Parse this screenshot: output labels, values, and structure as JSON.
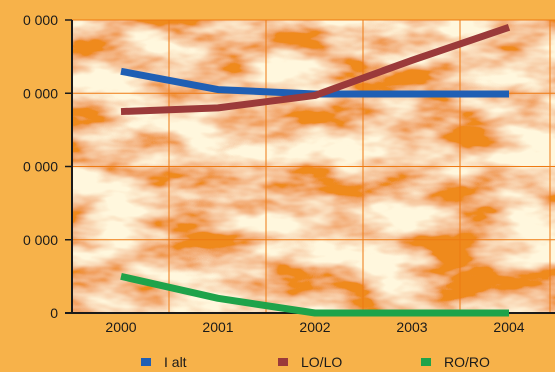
{
  "chart_data": {
    "type": "line",
    "title": "",
    "xlabel": "",
    "ylabel": "",
    "categories": [
      "2000",
      "2001",
      "2002",
      "2003",
      "2004"
    ],
    "y_tick_labels": [
      "0",
      "0 000",
      "0 000",
      "0 000",
      "0 000"
    ],
    "grid": true,
    "legend_position": "bottom",
    "series": [
      {
        "name": "I alt",
        "color": "#1f5fb4",
        "values": [
          3.3,
          3.05,
          2.99,
          2.99,
          2.99
        ]
      },
      {
        "name": "LO/LO",
        "color": "#9b3a3a",
        "values": [
          2.75,
          2.8,
          2.97,
          3.45,
          3.9
        ]
      },
      {
        "name": "RO/RO",
        "color": "#1fa34a",
        "values": [
          0.5,
          0.2,
          0.0,
          0.0,
          0.0
        ]
      }
    ],
    "ylim": [
      0,
      4
    ]
  }
}
